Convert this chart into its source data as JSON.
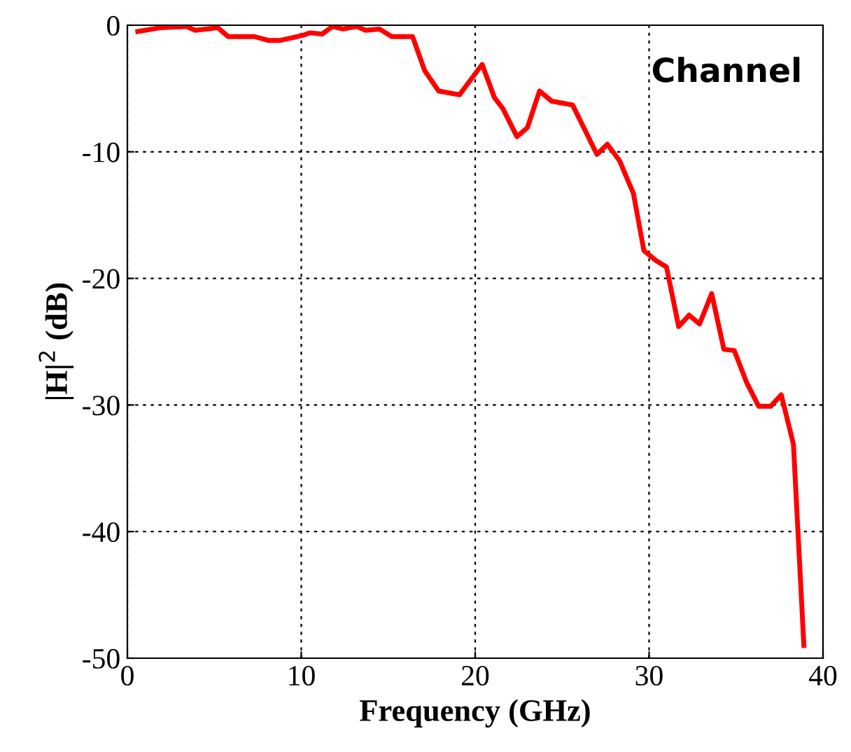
{
  "chart_data": {
    "type": "line",
    "xlabel": "Frequency (GHz)",
    "ylabel": "|H|$^{2}$ (dB)",
    "annotations": [
      "Channel"
    ],
    "x": [
      0.6,
      1.9,
      3.4,
      3.9,
      5.2,
      5.8,
      7.3,
      8.1,
      8.8,
      10.1,
      10.5,
      11.2,
      11.8,
      12.4,
      13.2,
      13.7,
      14.5,
      15.2,
      16.4,
      17.1,
      17.9,
      19.1,
      20.4,
      21.1,
      21.6,
      22.4,
      23.0,
      23.7,
      24.4,
      25.6,
      27.0,
      27.6,
      28.3,
      29.1,
      29.7,
      30.4,
      31.0,
      31.7,
      32.3,
      32.9,
      33.6,
      34.3,
      34.9,
      35.6,
      36.3,
      37.0,
      37.6,
      38.3,
      38.9
    ],
    "series": [
      {
        "color": "#ff0000",
        "values": [
          -0.5,
          -0.2,
          -0.1,
          -0.4,
          -0.2,
          -0.9,
          -0.9,
          -1.2,
          -1.2,
          -0.8,
          -0.6,
          -0.7,
          -0.1,
          -0.3,
          -0.1,
          -0.4,
          -0.3,
          -0.9,
          -0.9,
          -3.6,
          -5.2,
          -5.5,
          -3.1,
          -5.7,
          -6.6,
          -8.8,
          -8.1,
          -5.2,
          -6.0,
          -6.3,
          -10.2,
          -9.4,
          -10.7,
          -13.3,
          -17.8,
          -18.6,
          -19.1,
          -23.8,
          -22.9,
          -23.6,
          -21.2,
          -25.6,
          -25.7,
          -28.2,
          -30.1,
          -30.1,
          -29.2,
          -33.1,
          -49.0
        ]
      }
    ],
    "xlim": [
      0,
      40
    ],
    "ylim": [
      -50,
      0
    ],
    "xticks": [
      0,
      10,
      20,
      30,
      40
    ],
    "yticks": [
      -50,
      -40,
      -30,
      -20,
      -10,
      0
    ],
    "grid": true,
    "line_style": "solid",
    "marker": "none",
    "legend": false
  }
}
